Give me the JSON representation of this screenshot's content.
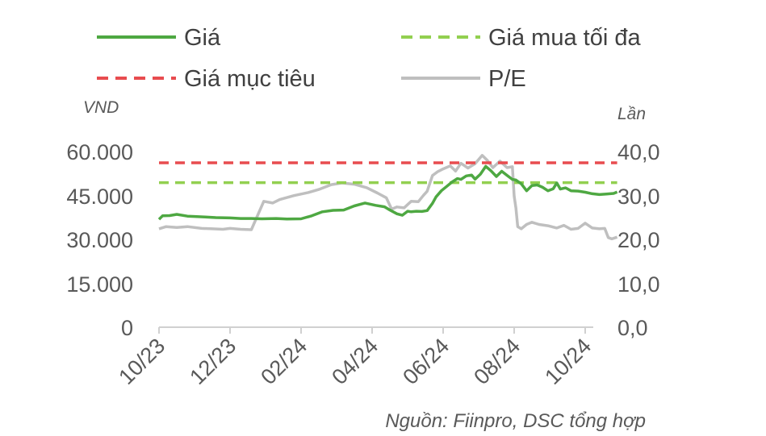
{
  "chart_data": {
    "type": "line",
    "title": "",
    "legend": {
      "placement": "top",
      "entries": [
        {
          "name": "Giá",
          "color": "#4EA842",
          "style": "solid"
        },
        {
          "name": "Giá mua tối đa",
          "color": "#92D050",
          "style": "dashed"
        },
        {
          "name": "Giá mục tiêu",
          "color": "#E84C4F",
          "style": "dashed"
        },
        {
          "name": "P/E",
          "color": "#BFBFBF",
          "style": "solid"
        }
      ]
    },
    "y_left": {
      "label": "VND",
      "ylim": [
        0,
        60000
      ],
      "ticks": [
        "0",
        "15.000",
        "30.000",
        "45.000",
        "60.000"
      ]
    },
    "y_right": {
      "label": "Lần",
      "ylim": [
        0,
        40
      ],
      "ticks": [
        "0,0",
        "10,0",
        "20,0",
        "30,0",
        "40,0"
      ]
    },
    "x_axis": {
      "tick_labels": [
        "10/23",
        "12/23",
        "02/24",
        "04/24",
        "06/24",
        "08/24",
        "10/24"
      ]
    },
    "grid": false,
    "series": [
      {
        "name": "Giá",
        "axis": "left",
        "x_month_index": [
          0,
          0.1,
          0.3,
          0.5,
          0.8,
          1.0,
          1.3,
          1.6,
          2.0,
          2.3,
          2.6,
          2.9,
          3.3,
          3.6,
          4.0,
          4.3,
          4.6,
          4.9,
          5.2,
          5.5,
          5.8,
          6.1,
          6.35,
          6.5,
          6.7,
          6.85,
          7.0,
          7.1,
          7.25,
          7.4,
          7.55,
          7.7,
          7.8,
          7.95,
          8.1,
          8.25,
          8.4,
          8.5,
          8.65,
          8.8,
          8.9,
          9.05,
          9.2,
          9.35,
          9.5,
          9.65,
          9.8,
          9.95,
          10.05,
          10.2,
          10.35,
          10.5,
          10.65,
          10.8,
          10.95,
          11.1,
          11.2,
          11.3,
          11.45,
          11.6,
          11.8,
          12.0,
          12.2,
          12.4,
          12.6,
          12.8,
          12.9
        ],
        "values": [
          37000,
          38200,
          38300,
          38700,
          38100,
          38000,
          37800,
          37600,
          37500,
          37300,
          37300,
          37200,
          37300,
          37100,
          37200,
          38200,
          39600,
          40100,
          40200,
          41600,
          42600,
          41800,
          41300,
          40200,
          38900,
          38400,
          39800,
          39600,
          39800,
          39700,
          40000,
          42500,
          44700,
          46800,
          48300,
          49800,
          51000,
          50700,
          51900,
          52200,
          50800,
          52500,
          55200,
          53600,
          51700,
          53500,
          52100,
          50700,
          50500,
          49200,
          46800,
          48600,
          48800,
          48000,
          46800,
          47500,
          49500,
          47400,
          47800,
          46800,
          46700,
          46300,
          45800,
          45500,
          45700,
          45900,
          46400
        ]
      },
      {
        "name": "Giá mua tối đa",
        "axis": "left",
        "x_month_index": [
          0,
          12.9
        ],
        "values": [
          49600,
          49600
        ]
      },
      {
        "name": "Giá mục tiêu",
        "axis": "left",
        "x_month_index": [
          0,
          12.9
        ],
        "values": [
          56400,
          56400
        ]
      },
      {
        "name": "P/E",
        "axis": "right",
        "x_month_index": [
          0,
          0.2,
          0.5,
          0.8,
          1.2,
          1.5,
          1.8,
          2.0,
          2.3,
          2.6,
          2.95,
          3.2,
          3.4,
          3.8,
          4.2,
          4.5,
          4.85,
          5.15,
          5.5,
          5.85,
          6.15,
          6.4,
          6.55,
          6.7,
          6.9,
          7.1,
          7.3,
          7.45,
          7.55,
          7.7,
          7.85,
          8.0,
          8.2,
          8.35,
          8.5,
          8.7,
          8.9,
          9.1,
          9.25,
          9.4,
          9.6,
          9.8,
          9.95,
          10.0,
          10.05,
          10.1,
          10.2,
          10.35,
          10.5,
          10.7,
          10.95,
          11.2,
          11.4,
          11.6,
          11.8,
          12.0,
          12.2,
          12.4,
          12.55,
          12.65,
          12.75,
          12.9
        ],
        "values": [
          22.5,
          23.0,
          22.8,
          23.0,
          22.6,
          22.5,
          22.4,
          22.6,
          22.4,
          22.3,
          28.8,
          28.4,
          29.2,
          30.1,
          30.8,
          31.5,
          32.6,
          33.0,
          32.7,
          31.9,
          30.7,
          29.6,
          27.0,
          27.5,
          27.3,
          28.8,
          28.7,
          30.2,
          31.1,
          34.7,
          35.6,
          36.2,
          36.9,
          35.7,
          37.5,
          36.4,
          37.4,
          39.3,
          38.1,
          36.5,
          38.0,
          36.5,
          36.7,
          30.0,
          27.2,
          23.0,
          22.5,
          23.5,
          24.0,
          23.5,
          23.2,
          22.7,
          23.3,
          22.4,
          22.6,
          23.8,
          22.7,
          22.5,
          22.6,
          20.5,
          20.2,
          20.6
        ]
      }
    ]
  },
  "source_note": "Nguồn: Fiinpro, DSC tổng hợp"
}
